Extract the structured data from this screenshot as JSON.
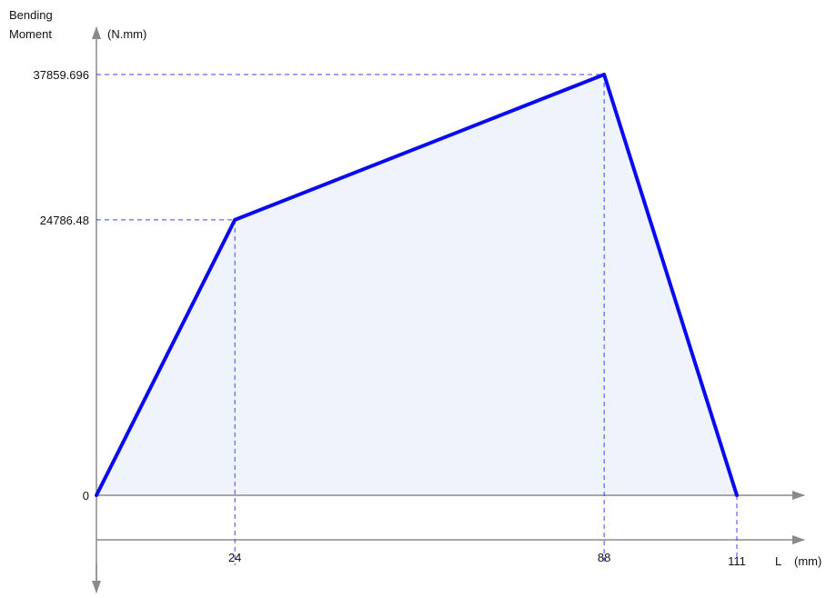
{
  "chart_data": {
    "type": "area",
    "title": "",
    "ylabel": "Bending Moment",
    "ylabel_lines": [
      "Bending",
      "Moment"
    ],
    "yunit": "(N.mm)",
    "xlabel": "L",
    "xunit": "(mm)",
    "x": [
      0,
      24,
      88,
      111
    ],
    "y": [
      0,
      24786.48,
      37859.696,
      0
    ],
    "y_tick_labels": [
      "37859.696",
      "24786.48",
      "0"
    ],
    "x_tick_labels": [
      "24",
      "88",
      "111"
    ],
    "xlim": [
      0,
      111
    ],
    "ylim": [
      0,
      37859.696
    ],
    "grid": false,
    "legend": "none",
    "colors": {
      "line": "#0a0aee",
      "fill": "#eef3fc",
      "guides": "#3b46f0",
      "axis": "#888888"
    }
  }
}
